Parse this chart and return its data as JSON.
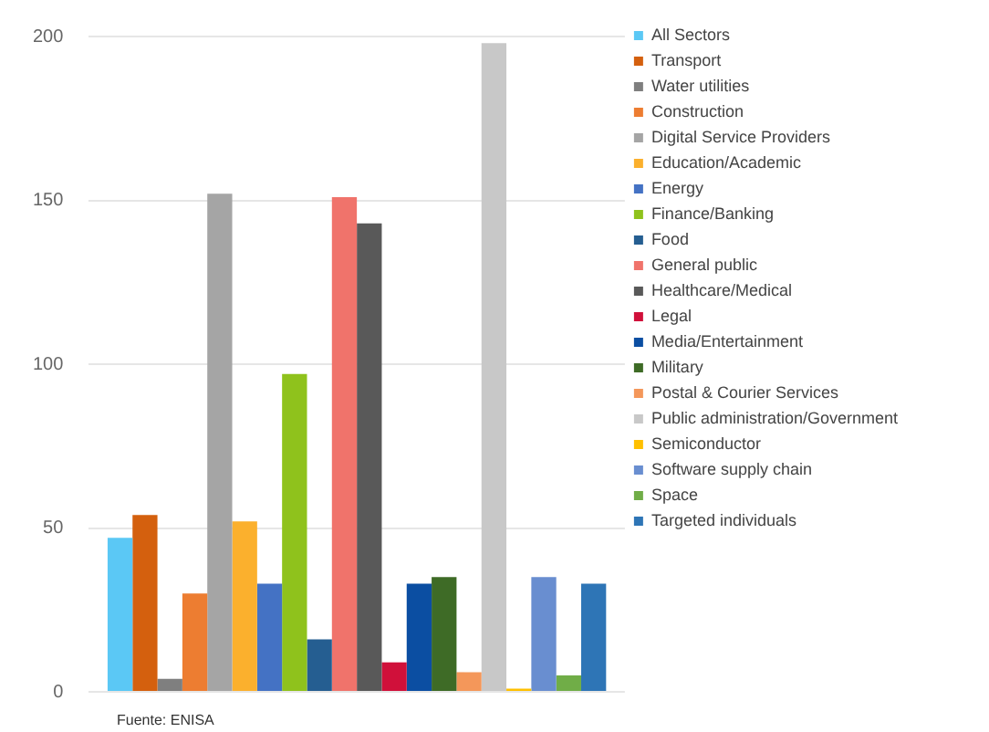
{
  "chart_data": {
    "type": "bar",
    "categories": [
      null
    ],
    "series": [
      {
        "name": "All Sectors",
        "color": "#5bc8f5",
        "values": [
          47
        ]
      },
      {
        "name": "Transport",
        "color": "#d4600e",
        "values": [
          54
        ]
      },
      {
        "name": "Water utilities",
        "color": "#7f7f7f",
        "values": [
          4
        ]
      },
      {
        "name": "Construction",
        "color": "#ed7d31",
        "values": [
          30
        ]
      },
      {
        "name": "Digital Service Providers",
        "color": "#a5a5a5",
        "values": [
          152
        ]
      },
      {
        "name": "Education/Academic",
        "color": "#fbb02d",
        "values": [
          52
        ]
      },
      {
        "name": "Energy",
        "color": "#4472c4",
        "values": [
          33
        ]
      },
      {
        "name": "Finance/Banking",
        "color": "#8fc21c",
        "values": [
          97
        ]
      },
      {
        "name": "Food",
        "color": "#255e91",
        "values": [
          16
        ]
      },
      {
        "name": "General public",
        "color": "#f0736b",
        "values": [
          151
        ]
      },
      {
        "name": "Healthcare/Medical",
        "color": "#595959",
        "values": [
          143
        ]
      },
      {
        "name": "Legal",
        "color": "#d0103a",
        "values": [
          9
        ]
      },
      {
        "name": "Media/Entertainment",
        "color": "#0b4ea2",
        "values": [
          33
        ]
      },
      {
        "name": "Military",
        "color": "#3e6b26",
        "values": [
          35
        ]
      },
      {
        "name": "Postal & Courier Services",
        "color": "#f4975a",
        "values": [
          6
        ]
      },
      {
        "name": "Public administration/Government",
        "color": "#c8c8c8",
        "values": [
          198
        ]
      },
      {
        "name": "Semiconductor",
        "color": "#ffc000",
        "values": [
          1
        ]
      },
      {
        "name": "Software supply chain",
        "color": "#698ed0",
        "values": [
          35
        ]
      },
      {
        "name": "Space",
        "color": "#70ad47",
        "values": [
          5
        ]
      },
      {
        "name": "Targeted individuals",
        "color": "#2e75b6",
        "values": [
          33
        ]
      }
    ],
    "ylim": [
      0,
      200
    ],
    "yticks": [
      0,
      50,
      100,
      150,
      200
    ],
    "grid": "y",
    "legend": "right",
    "annotations": [
      "Fuente: ENISA"
    ]
  }
}
